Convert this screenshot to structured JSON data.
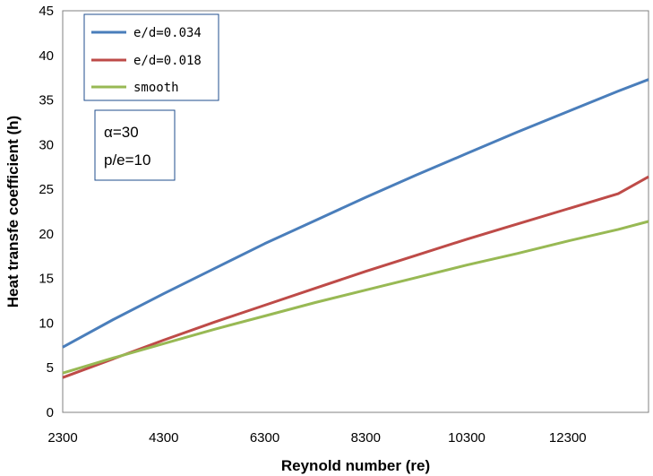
{
  "chart_data": {
    "type": "line",
    "title": "",
    "xlabel": "Reynold number (re)",
    "ylabel": "Heat transfe coefficient (h)",
    "xlim": [
      2300,
      13900
    ],
    "ylim": [
      0,
      45
    ],
    "x_ticks": [
      2300,
      4300,
      6300,
      8300,
      10300,
      12300
    ],
    "y_ticks": [
      0,
      5,
      10,
      15,
      20,
      25,
      30,
      35,
      40,
      45
    ],
    "grid": false,
    "legend_position": "top-left",
    "series": [
      {
        "name": "e/d=0.034",
        "color": "#4a7ebb",
        "x": [
          2300,
          3300,
          4300,
          5300,
          6300,
          7300,
          8300,
          9300,
          10300,
          11300,
          12300,
          13300,
          13900
        ],
        "y": [
          7.3,
          10.4,
          13.3,
          16.1,
          18.9,
          21.5,
          24.1,
          26.6,
          29.0,
          31.4,
          33.7,
          36.0,
          37.3
        ]
      },
      {
        "name": "e/d=0.018",
        "color": "#be4b48",
        "x": [
          2300,
          3300,
          4300,
          5300,
          6300,
          7300,
          8300,
          9300,
          10300,
          11300,
          12300,
          13300,
          13900
        ],
        "y": [
          3.9,
          6.0,
          8.1,
          10.1,
          12.0,
          13.9,
          15.8,
          17.6,
          19.4,
          21.1,
          22.8,
          24.5,
          26.4
        ]
      },
      {
        "name": "smooth",
        "color": "#98b954",
        "x": [
          2300,
          3300,
          4300,
          5300,
          6300,
          7300,
          8300,
          9300,
          10300,
          11300,
          12300,
          13300,
          13900
        ],
        "y": [
          4.4,
          6.1,
          7.7,
          9.3,
          10.8,
          12.3,
          13.7,
          15.1,
          16.5,
          17.8,
          19.2,
          20.5,
          21.4
        ]
      }
    ],
    "annotations": [
      "α=30",
      "p/e=10"
    ]
  }
}
